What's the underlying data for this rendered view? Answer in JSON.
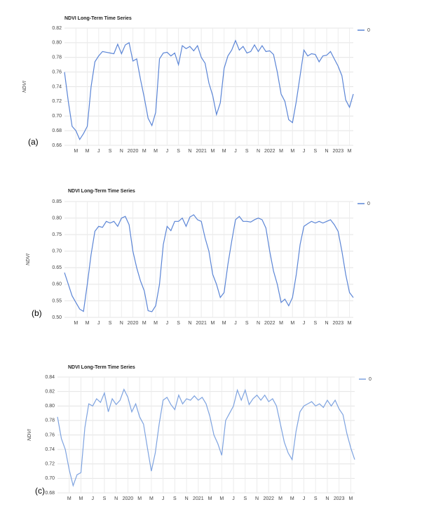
{
  "chart_data": [
    {
      "type": "line",
      "panel_label": "(a)",
      "title": "NDVI Long-Term Time Series",
      "y_label": "NDVI",
      "grid": true,
      "legend": "right",
      "categories": [
        null,
        null,
        null,
        "M",
        null,
        null,
        "M",
        null,
        null,
        "J",
        null,
        null,
        "S",
        null,
        null,
        "N",
        null,
        null,
        "2020",
        null,
        null,
        "M",
        null,
        null,
        "M",
        null,
        null,
        "J",
        null,
        null,
        "S",
        null,
        null,
        "N",
        null,
        null,
        "2021",
        null,
        null,
        "M",
        null,
        null,
        "M",
        null,
        null,
        "J",
        null,
        null,
        "S",
        null,
        null,
        "N",
        null,
        null,
        "2022",
        null,
        null,
        "M",
        null,
        null,
        "M",
        null,
        null,
        "J",
        null,
        null,
        "S",
        null,
        null,
        "N",
        null,
        null,
        "2023",
        null,
        null,
        "M",
        null
      ],
      "series": [
        {
          "name": "0",
          "color": "#5b85d6",
          "values": [
            0.76,
            0.72,
            0.686,
            0.68,
            0.668,
            0.676,
            0.686,
            0.74,
            0.774,
            0.782,
            0.788,
            0.787,
            0.786,
            0.785,
            0.798,
            0.785,
            0.797,
            0.8,
            0.775,
            0.778,
            0.75,
            0.725,
            0.697,
            0.687,
            0.705,
            0.778,
            0.786,
            0.787,
            0.782,
            0.786,
            0.77,
            0.796,
            0.792,
            0.795,
            0.789,
            0.796,
            0.78,
            0.772,
            0.745,
            0.728,
            0.702,
            0.718,
            0.765,
            0.782,
            0.79,
            0.803,
            0.79,
            0.795,
            0.786,
            0.788,
            0.797,
            0.788,
            0.796,
            0.788,
            0.789,
            0.784,
            0.76,
            0.73,
            0.72,
            0.695,
            0.691,
            0.72,
            0.755,
            0.79,
            0.782,
            0.785,
            0.784,
            0.774,
            0.782,
            0.783,
            0.788,
            0.778,
            0.768,
            0.755,
            0.722,
            0.712,
            0.73
          ]
        }
      ],
      "ylim": [
        0.66,
        0.82
      ],
      "yticks": [
        0.66,
        0.68,
        {
          "value": 0.7,
          "label": "0.70"
        },
        0.72,
        0.74,
        0.76,
        0.78,
        {
          "value": 0.8,
          "label": "0.80"
        },
        0.82
      ]
    },
    {
      "type": "line",
      "panel_label": "(b)",
      "title": "NDVI Long-Term Time Series",
      "y_label": "NDVI",
      "grid": true,
      "legend": "right",
      "categories": [
        null,
        null,
        null,
        "M",
        null,
        null,
        "M",
        null,
        null,
        "J",
        null,
        null,
        "S",
        null,
        null,
        "N",
        null,
        null,
        "2020",
        null,
        null,
        "M",
        null,
        null,
        "M",
        null,
        null,
        "J",
        null,
        null,
        "S",
        null,
        null,
        "N",
        null,
        null,
        "2021",
        null,
        null,
        "M",
        null,
        null,
        "M",
        null,
        null,
        "J",
        null,
        null,
        "S",
        null,
        null,
        "N",
        null,
        null,
        "2022",
        null,
        null,
        "M",
        null,
        null,
        "M",
        null,
        null,
        "J",
        null,
        null,
        "S",
        null,
        null,
        "N",
        null,
        null,
        "2023",
        null,
        null,
        "M",
        null
      ],
      "series": [
        {
          "name": "0",
          "color": "#5b85d6",
          "values": [
            0.635,
            0.6,
            0.565,
            0.545,
            0.525,
            0.518,
            0.6,
            0.69,
            0.76,
            0.775,
            0.772,
            0.79,
            0.785,
            0.79,
            0.775,
            0.8,
            0.805,
            0.78,
            0.7,
            0.65,
            0.61,
            0.58,
            0.52,
            0.517,
            0.535,
            0.6,
            0.72,
            0.775,
            0.762,
            0.79,
            0.79,
            0.8,
            0.775,
            0.803,
            0.81,
            0.795,
            0.79,
            0.74,
            0.7,
            0.63,
            0.6,
            0.56,
            0.575,
            0.66,
            0.73,
            0.795,
            0.805,
            0.79,
            0.79,
            0.788,
            0.795,
            0.8,
            0.795,
            0.77,
            0.7,
            0.64,
            0.6,
            0.545,
            0.555,
            0.535,
            0.56,
            0.63,
            0.72,
            0.775,
            0.783,
            0.79,
            0.785,
            0.79,
            0.785,
            0.79,
            0.795,
            0.78,
            0.76,
            0.7,
            0.63,
            0.575,
            0.56
          ]
        }
      ],
      "ylim": [
        0.5,
        0.85
      ],
      "yticks": [
        {
          "value": 0.5,
          "label": "0.50"
        },
        0.55,
        {
          "value": 0.6,
          "label": "0.60"
        },
        0.65,
        {
          "value": 0.7,
          "label": "0.70"
        },
        0.75,
        {
          "value": 0.8,
          "label": "0.80"
        },
        0.85
      ]
    },
    {
      "type": "line",
      "panel_label": "(c)",
      "title": "NDVI Long-Term Time Series",
      "y_label": "NDVI",
      "grid": true,
      "legend": "right",
      "categories": [
        null,
        null,
        null,
        "M",
        null,
        null,
        "M",
        null,
        null,
        "J",
        null,
        null,
        "S",
        null,
        null,
        "N",
        null,
        null,
        "2020",
        null,
        null,
        "M",
        null,
        null,
        "M",
        null,
        null,
        "J",
        null,
        null,
        "S",
        null,
        null,
        "N",
        null,
        null,
        "2021",
        null,
        null,
        "M",
        null,
        null,
        "M",
        null,
        null,
        "J",
        null,
        null,
        "S",
        null,
        null,
        "N",
        null,
        null,
        "2022",
        null,
        null,
        "M",
        null,
        null,
        "M",
        null,
        null,
        "J",
        null,
        null,
        "S",
        null,
        null,
        "N",
        null,
        null,
        "2023",
        null,
        null,
        "M",
        null
      ],
      "series": [
        {
          "name": "0",
          "color": "#7ea3e0",
          "values": [
            0.785,
            0.755,
            0.74,
            0.712,
            0.69,
            0.705,
            0.708,
            0.77,
            0.803,
            0.8,
            0.81,
            0.805,
            0.818,
            0.792,
            0.81,
            0.802,
            0.808,
            0.823,
            0.812,
            0.792,
            0.803,
            0.785,
            0.775,
            0.742,
            0.71,
            0.735,
            0.775,
            0.808,
            0.812,
            0.802,
            0.795,
            0.815,
            0.803,
            0.81,
            0.808,
            0.814,
            0.808,
            0.812,
            0.803,
            0.785,
            0.76,
            0.748,
            0.732,
            0.78,
            0.79,
            0.8,
            0.822,
            0.808,
            0.822,
            0.802,
            0.81,
            0.815,
            0.808,
            0.815,
            0.806,
            0.81,
            0.8,
            0.775,
            0.75,
            0.735,
            0.726,
            0.765,
            0.792,
            0.8,
            0.803,
            0.806,
            0.8,
            0.803,
            0.798,
            0.808,
            0.8,
            0.808,
            0.796,
            0.788,
            0.762,
            0.742,
            0.726
          ]
        }
      ],
      "ylim": [
        0.68,
        0.84
      ],
      "yticks": [
        0.68,
        {
          "value": 0.7,
          "label": "0.70"
        },
        0.72,
        0.74,
        0.76,
        0.78,
        {
          "value": 0.8,
          "label": "0.80"
        },
        0.82,
        0.84
      ]
    }
  ]
}
